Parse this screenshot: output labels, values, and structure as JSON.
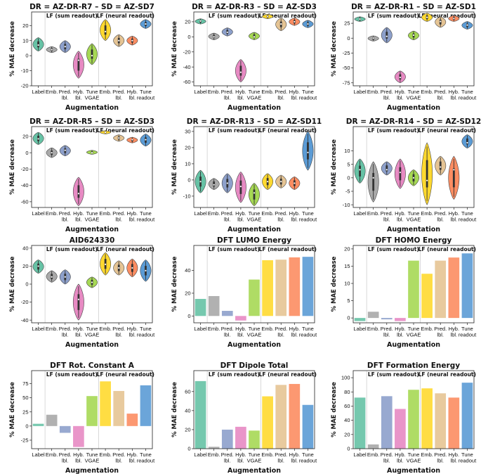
{
  "figure": {
    "colors": [
      "#66c2a5",
      "#a9a9a9",
      "#8da0cb",
      "#e78ac3",
      "#a6d854",
      "#ffd92f",
      "#e5c494",
      "#fc8d62",
      "#5b9bd5"
    ],
    "category_labels": [
      [
        "Label"
      ],
      [
        "Emb."
      ],
      [
        "Pred.",
        "lbl."
      ],
      [
        "Hyb.",
        "lbl."
      ],
      [
        "Tune",
        "VGAE"
      ],
      [
        "Emb."
      ],
      [
        "Pred.",
        "lbl."
      ],
      [
        "Hyb.",
        "lbl."
      ],
      [
        "Tune",
        "readout"
      ]
    ],
    "sum_readout_label": "LF (sum readout)",
    "neural_readout_label": "LF (neural readout)",
    "ylabel": "% MAE decrease",
    "xlabel": "Augmentation"
  },
  "chart_data": [
    {
      "type": "violin",
      "title": "DR = AZ-DR-R7  –  SD = AZ-SD7",
      "ylim": [
        -20,
        29
      ],
      "yticks": [
        -20,
        -10,
        0,
        10,
        20
      ],
      "medians": [
        7,
        4,
        6,
        -3,
        0,
        16,
        10,
        10,
        21
      ],
      "ranges": [
        [
          3,
          12
        ],
        [
          2,
          6
        ],
        [
          2,
          10
        ],
        [
          -15,
          3
        ],
        [
          -6,
          8
        ],
        [
          10,
          24
        ],
        [
          6,
          14
        ],
        [
          7,
          13
        ],
        [
          18,
          24
        ]
      ]
    },
    {
      "type": "violin",
      "title": "DR = AZ-DR-R3  –  SD = AZ-SD3",
      "ylim": [
        -65,
        33
      ],
      "yticks": [
        -60,
        -40,
        -20,
        0,
        20
      ],
      "medians": [
        21,
        0,
        6,
        -47,
        0,
        27,
        17,
        20,
        17
      ],
      "ranges": [
        [
          17,
          24
        ],
        [
          -4,
          5
        ],
        [
          1,
          12
        ],
        [
          -60,
          -30
        ],
        [
          -4,
          6
        ],
        [
          24,
          30
        ],
        [
          8,
          25
        ],
        [
          15,
          25
        ],
        [
          12,
          22
        ]
      ]
    },
    {
      "type": "violin",
      "title": "DR = AZ-DR-R1  –  SD = AZ-SD1",
      "ylim": [
        -80,
        44
      ],
      "yticks": [
        -75,
        -50,
        -25,
        0,
        25
      ],
      "medians": [
        32,
        0,
        3,
        -66,
        5,
        35,
        28,
        33,
        22
      ],
      "ranges": [
        [
          28,
          36
        ],
        [
          -5,
          4
        ],
        [
          -8,
          18
        ],
        [
          -75,
          -55
        ],
        [
          -3,
          12
        ],
        [
          28,
          42
        ],
        [
          18,
          36
        ],
        [
          28,
          38
        ],
        [
          15,
          28
        ]
      ]
    },
    {
      "type": "violin",
      "title": "DR = AZ-DR-R5  –  SD = AZ-SD3",
      "ylim": [
        -67,
        32
      ],
      "yticks": [
        -60,
        -40,
        -20,
        0,
        20
      ],
      "medians": [
        17,
        0,
        3,
        -50,
        0,
        25,
        18,
        16,
        16
      ],
      "ranges": [
        [
          10,
          25
        ],
        [
          -6,
          6
        ],
        [
          -4,
          9
        ],
        [
          -65,
          -30
        ],
        [
          -2,
          3
        ],
        [
          23,
          27
        ],
        [
          14,
          22
        ],
        [
          12,
          19
        ],
        [
          8,
          23
        ]
      ]
    },
    {
      "type": "violin",
      "title": "DR = AZ-DR-R13  –  SD = AZ-SD11",
      "ylim": [
        -17,
        33
      ],
      "yticks": [
        -10,
        0,
        10,
        20,
        30
      ],
      "medians": [
        -1,
        -3,
        -2,
        -4,
        -8,
        -1,
        -1,
        -2,
        17
      ],
      "ranges": [
        [
          -8,
          6
        ],
        [
          -6,
          1
        ],
        [
          -8,
          4
        ],
        [
          -14,
          5
        ],
        [
          -16,
          -2
        ],
        [
          -6,
          4
        ],
        [
          -5,
          3
        ],
        [
          -6,
          2
        ],
        [
          6,
          30
        ]
      ]
    },
    {
      "type": "violin",
      "title": "DR = AZ-DR-R14  –  SD = AZ-SD12",
      "ylim": [
        -11,
        19
      ],
      "yticks": [
        -10,
        -5,
        0,
        5,
        10
      ],
      "medians": [
        3,
        0,
        3,
        2,
        0,
        -1,
        4,
        3,
        13
      ],
      "ranges": [
        [
          -2,
          7
        ],
        [
          -9,
          6
        ],
        [
          1,
          6
        ],
        [
          -4,
          7
        ],
        [
          -3,
          3
        ],
        [
          -10,
          13
        ],
        [
          1,
          8
        ],
        [
          -8,
          8
        ],
        [
          11,
          16
        ]
      ]
    },
    {
      "type": "violin",
      "title": "AID624330",
      "ylim": [
        -43,
        43
      ],
      "yticks": [
        -40,
        -20,
        0,
        20,
        40
      ],
      "medians": [
        20,
        8,
        8,
        -17,
        2,
        22,
        18,
        18,
        15
      ],
      "ranges": [
        [
          12,
          27
        ],
        [
          2,
          15
        ],
        [
          0,
          16
        ],
        [
          -40,
          0
        ],
        [
          -4,
          8
        ],
        [
          10,
          35
        ],
        [
          10,
          26
        ],
        [
          8,
          28
        ],
        [
          3,
          27
        ]
      ]
    },
    {
      "type": "bar",
      "title": "DFT LUMO Energy",
      "ylim": [
        -6,
        62
      ],
      "yticks": [
        0,
        20,
        40
      ],
      "values": [
        15,
        17.5,
        4.5,
        -4,
        32,
        49,
        49.5,
        51.5,
        52
      ]
    },
    {
      "type": "bar",
      "title": "DFT HOMO Energy",
      "ylim": [
        -1.4,
        21
      ],
      "yticks": [
        0,
        5,
        10,
        15,
        20
      ],
      "values": [
        -0.9,
        1.8,
        -0.4,
        -0.9,
        16.6,
        12.8,
        16.6,
        17.5,
        18.7
      ]
    },
    {
      "type": "bar",
      "title": "DFT Rot. Constant A",
      "ylim": [
        -40,
        98
      ],
      "yticks": [
        -25,
        0,
        25,
        50,
        75
      ],
      "values": [
        4,
        20,
        -12,
        -37,
        53,
        79,
        62,
        22,
        72
      ]
    },
    {
      "type": "bar",
      "title": "DFT Dipole Total",
      "ylim": [
        0,
        82
      ],
      "yticks": [
        0,
        20,
        40,
        60
      ],
      "values": [
        71,
        2,
        20,
        23,
        19,
        55,
        67,
        68,
        46
      ]
    },
    {
      "type": "bar",
      "title": "DFT Formation Energy",
      "ylim": [
        0,
        110
      ],
      "yticks": [
        0,
        20,
        40,
        60,
        80,
        100
      ],
      "values": [
        72,
        6,
        74,
        56,
        83,
        85,
        78,
        72,
        93
      ]
    }
  ]
}
